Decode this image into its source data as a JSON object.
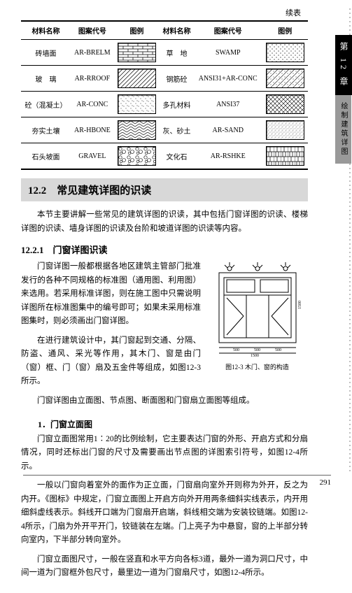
{
  "cont_label": "续表",
  "table": {
    "headers": [
      "材料名称",
      "图案代号",
      "图例",
      "材料名称",
      "图案代号",
      "图例"
    ],
    "rows": [
      {
        "n1": "砖墙面",
        "c1": "AR-BRELM",
        "p1": "brick",
        "n2": "草　地",
        "c2": "SWAMP",
        "p2": "dots"
      },
      {
        "n1": "玻　璃",
        "c1": "AR-RROOF",
        "p1": "diag",
        "n2": "钢筋砼",
        "c2": "ANSI31+AR-CONC",
        "p2": "conc"
      },
      {
        "n1": "砼（混凝土）",
        "c1": "AR-CONC",
        "p1": "speck",
        "n2": "多孔材料",
        "c2": "ANSI37",
        "p2": "cross"
      },
      {
        "n1": "夯实土壤",
        "c1": "AR-HBONE",
        "p1": "herr",
        "n2": "灰、砂土",
        "c2": "AR-SAND",
        "p2": "sand"
      },
      {
        "n1": "石头坡面",
        "c1": "GRAVEL",
        "p1": "gravel",
        "n2": "文化石",
        "c2": "AR-RSHKE",
        "p2": "shke"
      }
    ]
  },
  "section_num": "12.2",
  "section_title": "常见建筑详图的识读",
  "intro": "本节主要讲解一些常见的建筑详图的识读，其中包括门窗详图的识读、楼梯详图的识读、墙身详图的识读及台阶和坡道详图的识读等内容。",
  "sub_num": "12.2.1",
  "sub_title": "门窗详图识读",
  "p1": "门窗详图一般都根据各地区建筑主管部门批准发行的各种不同规格的标准图（通用图、利用图）来选用。若采用标准详图，则在施工图中只需说明详图所在标准图集中的编号即可；如果未采用标准图集时，则必须画出门窗详图。",
  "p2": "在进行建筑设计中，其门窗起到交通、分隔、防盗、通风、采光等作用，其木门、窗是由门（窗）框、门（窗）扇及五金件等组成，如图12-3所示。",
  "p3": "门窗详图由立面图、节点图、断面图和门窗扇立面图等组成。",
  "ss1": "1．门窗立面图",
  "p4": "门窗立面图常用1∶20的比例绘制，它主要表达门窗的外形、开启方式和分扇情况，同时还标出门窗的尺寸及需要画出节点图的详图索引符号，如图12-4所示。",
  "p5": "一般以门窗向着室外的面作为正立面，门窗扇向室外开则称为外开，反之为内开。《图标》中规定，门窗立面图上开启方向外开用两条细斜实线表示，内开用细斜虚线表示。斜线开口端为门窗扇开启端，斜线相交端为安装铰链端。如图12-4所示，门扇为外开平开门，铰链装在左端。门上亮子为中悬窗，窗的上半部分转向室内，下半部分转向室外。",
  "p6": "门窗立面图尺寸，一般在竖直和水平方向各标3道，最外一道为洞口尺寸，中间一道为门窗框外包尺寸，最里边一道为门窗扇尺寸，如图12-4所示。",
  "fig_cap": "图12-3  木门、窗的构造",
  "sidebar": {
    "chapter": "第 12 章",
    "topic": "绘制建筑详图"
  },
  "page_num": "291"
}
